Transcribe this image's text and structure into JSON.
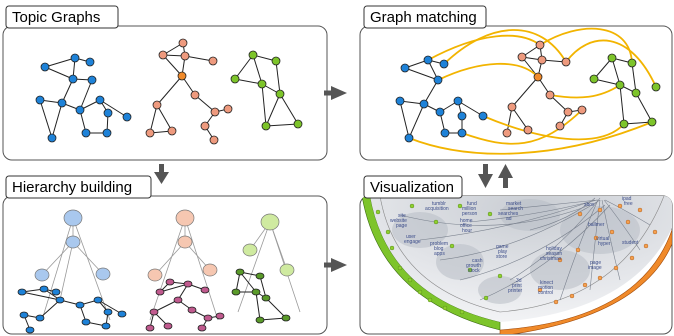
{
  "panels": {
    "topic_graphs": {
      "label": "Topic Graphs"
    },
    "graph_matching": {
      "label": "Graph matching"
    },
    "hierarchy_building": {
      "label": "Hierarchy building"
    },
    "visualization": {
      "label": "Visualization"
    }
  },
  "colors": {
    "blue": "#1e82d8",
    "salmon": "#ee9a7e",
    "green": "#7dc42a",
    "orange": "#f08a2a",
    "gold": "#f2b400",
    "purple": "#7a3a86",
    "panel_border": "#555555",
    "arrow": "#555555",
    "hier_blue": "#a9c8ee",
    "hier_salmon": "#f6c7b1",
    "hier_green": "#cfeaa0"
  },
  "visualization_labels": [
    "tumblr",
    "acquisition",
    "site",
    "website",
    "page",
    "fund",
    "million",
    "person",
    "market",
    "search",
    "searches",
    "ad",
    "user",
    "engage",
    "problem",
    "blog",
    "apps",
    "home",
    "office",
    "hour",
    "game",
    "play",
    "store",
    "cash",
    "growth",
    "stock",
    "holiday",
    "season",
    "christmas",
    "3d",
    "print",
    "printer",
    "kinect",
    "motion",
    "control",
    "ballmer",
    "virtual",
    "hyper",
    "student",
    "page",
    "image",
    "xbox",
    "ipad",
    "free"
  ]
}
